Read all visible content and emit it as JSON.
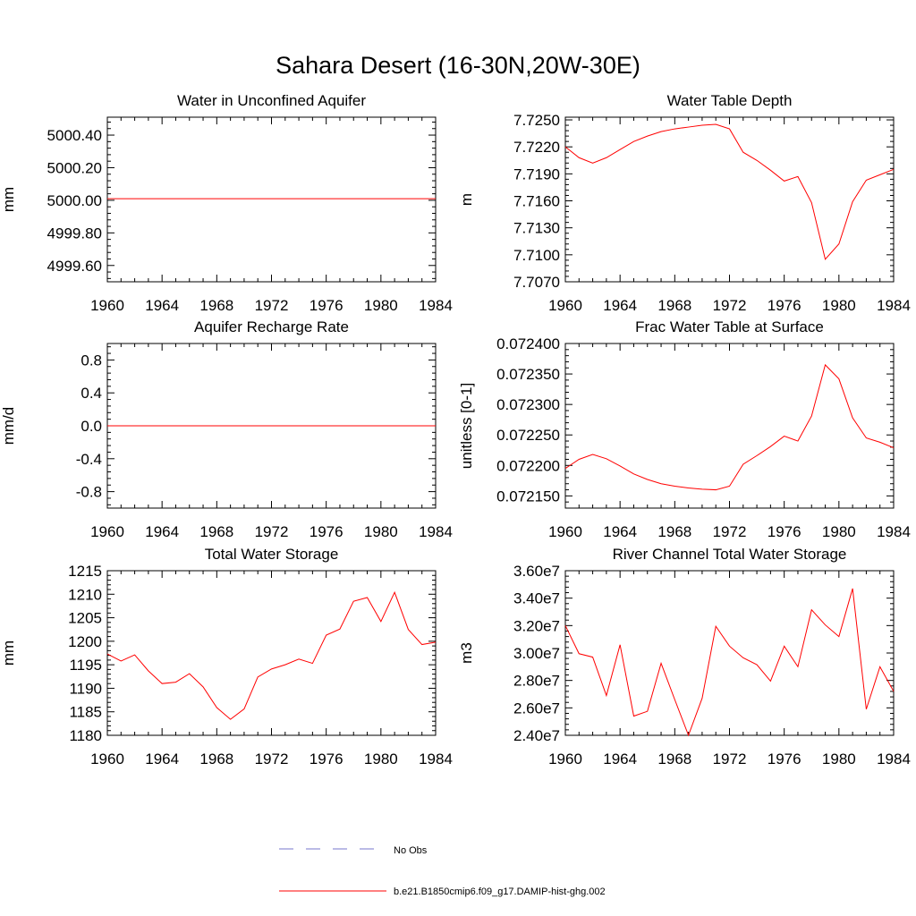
{
  "title": "Sahara Desert (16-30N,20W-30E)",
  "legend": {
    "placement": "bottom-center",
    "entries": [
      {
        "label": "No Obs",
        "color": "#7777cc",
        "style": "dashed"
      },
      {
        "label": "b.e21.B1850cmip6.f09_g17.DAMIP-hist-ghg.002",
        "color": "#ff0000",
        "style": "solid"
      }
    ]
  },
  "chart_data": [
    {
      "type": "line",
      "title": "Water in Unconfined Aquifer",
      "ylabel": "mm",
      "xlim": [
        1960,
        1984
      ],
      "xticks": [
        1960,
        1964,
        1968,
        1972,
        1976,
        1980,
        1984
      ],
      "ylim": [
        4999.5,
        5000.51
      ],
      "yticks": [
        4999.6,
        4999.8,
        5000.0,
        5000.2,
        5000.4
      ],
      "ytick_labels": [
        "4999.60",
        "4999.80",
        "5000.00",
        "5000.20",
        "5000.40"
      ],
      "series": [
        {
          "color": "#ff0000",
          "x": [
            1960,
            1961,
            1962,
            1963,
            1964,
            1965,
            1966,
            1967,
            1968,
            1969,
            1970,
            1971,
            1972,
            1973,
            1974,
            1975,
            1976,
            1977,
            1978,
            1979,
            1980,
            1981,
            1982,
            1983,
            1984
          ],
          "values": [
            5000.01,
            5000.01,
            5000.01,
            5000.01,
            5000.01,
            5000.01,
            5000.01,
            5000.01,
            5000.01,
            5000.01,
            5000.01,
            5000.01,
            5000.01,
            5000.01,
            5000.01,
            5000.01,
            5000.01,
            5000.01,
            5000.01,
            5000.01,
            5000.01,
            5000.01,
            5000.01,
            5000.01,
            5000.01
          ]
        }
      ]
    },
    {
      "type": "line",
      "title": "Water Table Depth",
      "ylabel": "m",
      "xlim": [
        1960,
        1984
      ],
      "xticks": [
        1960,
        1964,
        1968,
        1972,
        1976,
        1980,
        1984
      ],
      "ylim": [
        7.707,
        7.7253
      ],
      "yticks": [
        7.707,
        7.71,
        7.713,
        7.716,
        7.719,
        7.722,
        7.725
      ],
      "ytick_labels": [
        "7.7070",
        "7.7100",
        "7.7130",
        "7.7160",
        "7.7190",
        "7.7220",
        "7.7250"
      ],
      "series": [
        {
          "color": "#ff0000",
          "x": [
            1960,
            1961,
            1962,
            1963,
            1964,
            1965,
            1966,
            1967,
            1968,
            1969,
            1970,
            1971,
            1972,
            1973,
            1974,
            1975,
            1976,
            1977,
            1978,
            1979,
            1980,
            1981,
            1982,
            1983,
            1984
          ],
          "values": [
            7.722,
            7.7208,
            7.7202,
            7.7208,
            7.7217,
            7.7226,
            7.7232,
            7.7237,
            7.724,
            7.7242,
            7.7244,
            7.7245,
            7.724,
            7.7214,
            7.7205,
            7.7194,
            7.7182,
            7.7187,
            7.7158,
            7.7095,
            7.7112,
            7.7159,
            7.7183,
            7.7189,
            7.7195
          ]
        }
      ]
    },
    {
      "type": "line",
      "title": "Aquifer Recharge Rate",
      "ylabel": "mm/d",
      "xlim": [
        1960,
        1984
      ],
      "xticks": [
        1960,
        1964,
        1968,
        1972,
        1976,
        1980,
        1984
      ],
      "ylim": [
        -1.0,
        1.0
      ],
      "yticks": [
        -0.8,
        -0.4,
        0.0,
        0.4,
        0.8
      ],
      "ytick_labels": [
        "-0.8",
        "-0.4",
        "0.0",
        "0.4",
        "0.8"
      ],
      "series": [
        {
          "color": "#ff0000",
          "x": [
            1960,
            1961,
            1962,
            1963,
            1964,
            1965,
            1966,
            1967,
            1968,
            1969,
            1970,
            1971,
            1972,
            1973,
            1974,
            1975,
            1976,
            1977,
            1978,
            1979,
            1980,
            1981,
            1982,
            1983,
            1984
          ],
          "values": [
            0,
            0,
            0,
            0,
            0,
            0,
            0,
            0,
            0,
            0,
            0,
            0,
            0,
            0,
            0,
            0,
            0,
            0,
            0,
            0,
            0,
            0,
            0,
            0,
            0
          ]
        }
      ]
    },
    {
      "type": "line",
      "title": "Frac Water Table at Surface",
      "ylabel": "unitless [0-1]",
      "xlim": [
        1960,
        1984
      ],
      "xticks": [
        1960,
        1964,
        1968,
        1972,
        1976,
        1980,
        1984
      ],
      "ylim": [
        0.07213,
        0.0724
      ],
      "yticks": [
        0.07215,
        0.0722,
        0.07225,
        0.0723,
        0.07235,
        0.0724
      ],
      "ytick_labels": [
        "0.072150",
        "0.072200",
        "0.072250",
        "0.072300",
        "0.072350",
        "0.072400"
      ],
      "series": [
        {
          "color": "#ff0000",
          "x": [
            1960,
            1961,
            1962,
            1963,
            1964,
            1965,
            1966,
            1967,
            1968,
            1969,
            1970,
            1971,
            1972,
            1973,
            1974,
            1975,
            1976,
            1977,
            1978,
            1979,
            1980,
            1981,
            1982,
            1983,
            1984
          ],
          "values": [
            0.072195,
            0.07221,
            0.072218,
            0.072211,
            0.072199,
            0.072186,
            0.072177,
            0.07217,
            0.072166,
            0.072163,
            0.072161,
            0.07216,
            0.072166,
            0.072202,
            0.072216,
            0.072231,
            0.072248,
            0.07224,
            0.072281,
            0.072365,
            0.072342,
            0.072278,
            0.072245,
            0.072238,
            0.072229
          ]
        }
      ]
    },
    {
      "type": "line",
      "title": "Total Water Storage",
      "ylabel": "mm",
      "xlim": [
        1960,
        1984
      ],
      "xticks": [
        1960,
        1964,
        1968,
        1972,
        1976,
        1980,
        1984
      ],
      "ylim": [
        1180,
        1215
      ],
      "yticks": [
        1180,
        1185,
        1190,
        1195,
        1200,
        1205,
        1210,
        1215
      ],
      "ytick_labels": [
        "1180",
        "1185",
        "1190",
        "1195",
        "1200",
        "1205",
        "1210",
        "1215"
      ],
      "series": [
        {
          "color": "#ff0000",
          "x": [
            1960,
            1961,
            1962,
            1963,
            1964,
            1965,
            1966,
            1967,
            1968,
            1969,
            1970,
            1971,
            1972,
            1973,
            1974,
            1975,
            1976,
            1977,
            1978,
            1979,
            1980,
            1981,
            1982,
            1983,
            1984
          ],
          "values": [
            1197.3,
            1195.8,
            1197.1,
            1193.7,
            1191.0,
            1191.3,
            1193.1,
            1190.3,
            1185.9,
            1183.4,
            1185.6,
            1192.4,
            1194.1,
            1195.0,
            1196.2,
            1195.3,
            1201.3,
            1202.6,
            1208.5,
            1209.3,
            1204.2,
            1210.4,
            1202.5,
            1199.3,
            1199.8
          ]
        }
      ]
    },
    {
      "type": "line",
      "title": "River Channel Total Water Storage",
      "ylabel": "m3",
      "xlim": [
        1960,
        1984
      ],
      "xticks": [
        1960,
        1964,
        1968,
        1972,
        1976,
        1980,
        1984
      ],
      "ylim": [
        24000000,
        36000000
      ],
      "yticks": [
        24000000,
        26000000,
        28000000,
        30000000,
        32000000,
        34000000,
        36000000
      ],
      "ytick_labels": [
        "2.40e7",
        "2.60e7",
        "2.80e7",
        "3.00e7",
        "3.20e7",
        "3.40e7",
        "3.60e7"
      ],
      "series": [
        {
          "color": "#ff0000",
          "x": [
            1960,
            1961,
            1962,
            1963,
            1964,
            1965,
            1966,
            1967,
            1968,
            1969,
            1970,
            1971,
            1972,
            1973,
            1974,
            1975,
            1976,
            1977,
            1978,
            1979,
            1980,
            1981,
            1982,
            1983,
            1984
          ],
          "values": [
            32000000,
            29950000,
            29700000,
            26900000,
            30600000,
            25400000,
            25750000,
            29250000,
            26600000,
            24000000,
            26700000,
            31950000,
            30500000,
            29650000,
            29150000,
            27950000,
            30500000,
            29000000,
            33150000,
            32050000,
            31200000,
            34700000,
            25900000,
            29000000,
            27200000
          ]
        }
      ]
    }
  ]
}
